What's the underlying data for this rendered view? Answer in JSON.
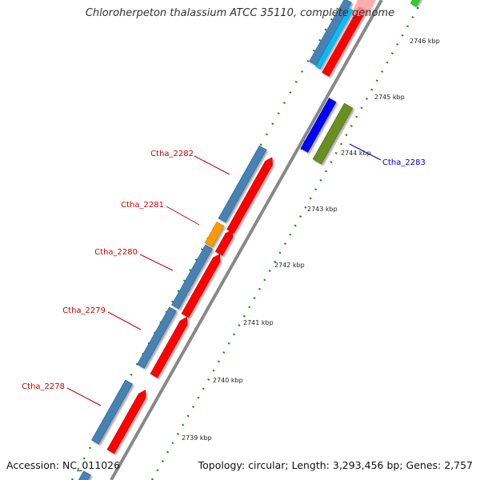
{
  "title": "Chloroherpeton thalassium ATCC 35110, complete genome",
  "footer": {
    "accession": "Accession: NC_011026",
    "topology": "Topology: circular; Length: 3,293,456 bp; Genes: 2,757"
  },
  "ticks": [
    "2739 kbp",
    "2740 kbp",
    "2741 kbp",
    "2742 kbp",
    "2743 kbp",
    "2744 kbp",
    "2745 kbp",
    "2746 kbp"
  ],
  "gene_labels": [
    {
      "text": "Ctha_2282",
      "color": "#cc0000"
    },
    {
      "text": "Ctha_2281",
      "color": "#cc0000"
    },
    {
      "text": "Ctha_2280",
      "color": "#cc0000"
    },
    {
      "text": "Ctha_2279",
      "color": "#cc0000"
    },
    {
      "text": "Ctha_2278",
      "color": "#cc0000"
    },
    {
      "text": "Ctha_2283",
      "color": "#0000cc"
    }
  ],
  "colors": {
    "cds_red": "#ff0000",
    "gene_blue": "#4682b4",
    "orange": "#ff9900",
    "bright_blue": "#0000ff",
    "olive": "#6b8e23",
    "cyan": "#00bfff",
    "green": "#33cc33",
    "gc_dots": "#228b22",
    "backbone": "#888888"
  }
}
